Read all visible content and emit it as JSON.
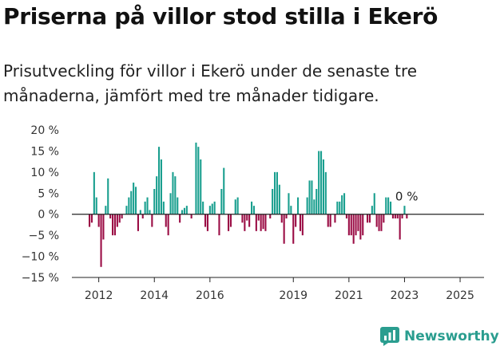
{
  "title": "Priserna på villor stod stilla i Ekerö",
  "subtitle": "Prisutveckling för villor i Ekerö under de senaste tre månaderna, jämfört med tre månader tidigare.",
  "brand": {
    "name": "Newsworthy",
    "icon": "newsworthy-logo-icon",
    "color": "#2a9d8f"
  },
  "colors": {
    "positive": "#1a9f8f",
    "negative": "#9b0d45",
    "axis": "#333333"
  },
  "chart_data": {
    "type": "bar",
    "title": "",
    "xlabel": "",
    "ylabel": "",
    "ylim": [
      -15,
      20
    ],
    "y_ticks": [
      20,
      15,
      10,
      5,
      0,
      -5,
      -10,
      -15
    ],
    "y_tick_labels": [
      "20 %",
      "15 %",
      "10 %",
      "5 %",
      "0 %",
      "−5 %",
      "−10 %",
      "−15 %"
    ],
    "x_ticks": [
      {
        "label": "2012",
        "index": 4
      },
      {
        "label": "2014",
        "index": 28
      },
      {
        "label": "2016",
        "index": 52
      },
      {
        "label": "2019",
        "index": 88
      },
      {
        "label": "2021",
        "index": 112
      },
      {
        "label": "2023",
        "index": 136
      },
      {
        "label": "2025",
        "index": 160
      }
    ],
    "last_value_label": "0 %",
    "grid": false,
    "legend": "none",
    "values": [
      -3,
      -2,
      10,
      4,
      -3,
      -12.5,
      -6,
      2,
      8.5,
      -1,
      -5,
      -5,
      -3,
      -2,
      -1,
      0,
      2,
      4,
      5.5,
      7.5,
      6.5,
      -4,
      1,
      -1,
      3,
      4,
      1,
      -3,
      6,
      9,
      16,
      13,
      3,
      -3,
      -5,
      5,
      10,
      9,
      4,
      -2,
      1,
      1.5,
      2,
      0,
      -1,
      0,
      17,
      16,
      13,
      3,
      -3,
      -4,
      2,
      2.5,
      3,
      0,
      -5,
      6,
      11,
      0,
      -4,
      -3,
      0,
      3.5,
      4,
      0,
      -2,
      -4,
      -1.5,
      -3,
      3,
      2,
      -4,
      -1.5,
      -4,
      -3.5,
      -4,
      0,
      -1,
      6,
      10,
      10,
      7,
      -2,
      -7,
      -1,
      5,
      2,
      -7,
      -3,
      4,
      -4,
      -5,
      0,
      4,
      8,
      8,
      3.5,
      6,
      15,
      15,
      13,
      10,
      -3,
      -3,
      0,
      -2,
      3,
      3,
      4.5,
      5,
      -1,
      -5,
      -5,
      -7,
      -5,
      -4,
      -6,
      -5,
      0,
      -2,
      -2,
      2,
      5,
      -3,
      -4,
      -4,
      -2,
      4,
      4,
      3,
      -1,
      -1,
      -1,
      -6,
      -1,
      2,
      -1,
      0
    ]
  }
}
